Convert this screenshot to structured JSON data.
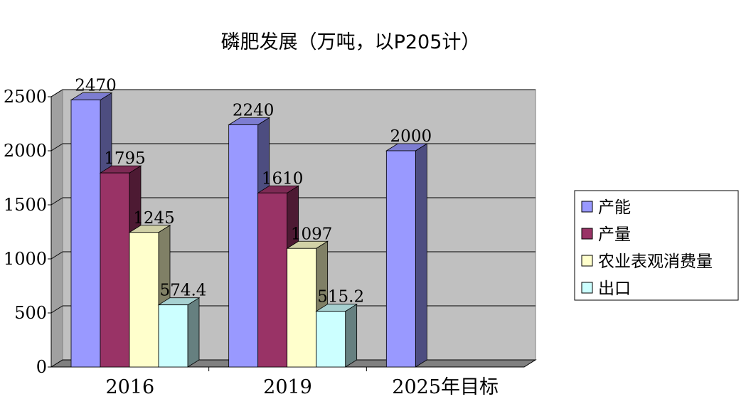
{
  "chart_data": {
    "type": "bar",
    "title": "磷肥发展（万吨，以P205计）",
    "categories": [
      "2016",
      "2019",
      "2025年目标"
    ],
    "series": [
      {
        "name": "产能",
        "values": [
          2470,
          2240,
          2000
        ],
        "labels": [
          "2470",
          "2240",
          "2000"
        ],
        "color": "#9999ff"
      },
      {
        "name": "产量",
        "values": [
          1795,
          1610,
          null
        ],
        "labels": [
          "1795",
          "1610",
          ""
        ],
        "color": "#993366"
      },
      {
        "name": "农业表观消费量",
        "values": [
          1245,
          1097,
          null
        ],
        "labels": [
          "1245",
          "1097",
          ""
        ],
        "color": "#ffffcc"
      },
      {
        "name": "出口",
        "values": [
          574.4,
          515.2,
          null
        ],
        "labels": [
          "574.4",
          "515.2",
          ""
        ],
        "color": "#ccffff"
      }
    ],
    "y_ticks": [
      "0",
      "500",
      "1000",
      "1500",
      "2000",
      "2500"
    ],
    "ylim": [
      0,
      2500
    ],
    "grid": true,
    "legend_position": "right",
    "colors": {
      "plot_background": "#c0c0c0",
      "floor": "#808080",
      "page_background": "#ffffff"
    }
  }
}
